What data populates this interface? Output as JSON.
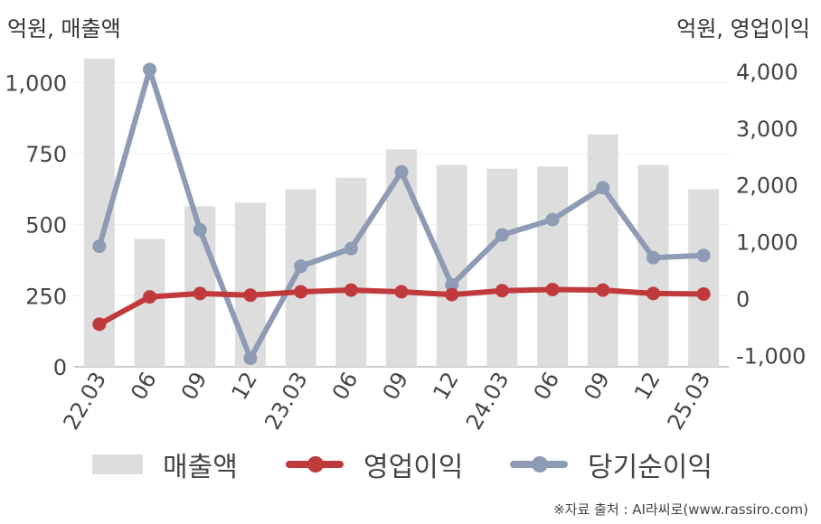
{
  "chart_data": {
    "type": "bar+line",
    "categories": [
      "22.03",
      "06",
      "09",
      "12",
      "23.03",
      "06",
      "09",
      "12",
      "24.03",
      "06",
      "09",
      "12",
      "25.03"
    ],
    "left_axis": {
      "unit_label": "억원, 매출액",
      "ylim": [
        0,
        1100
      ],
      "ticks": [
        0,
        250,
        500,
        750,
        1000
      ],
      "tick_labels": [
        "0",
        "250",
        "500",
        "750",
        "1,000"
      ]
    },
    "right_axis": {
      "unit_label": "억원, 영업이익",
      "ylim": [
        -1200,
        4300
      ],
      "ticks": [
        -1000,
        0,
        1000,
        2000,
        3000,
        4000
      ],
      "tick_labels": [
        "-1,000",
        "0",
        "1,000",
        "2,000",
        "3,000",
        "4,000"
      ]
    },
    "series": [
      {
        "name": "매출액",
        "kind": "bar",
        "axis": "left",
        "color": "#dddddd",
        "values": [
          1085,
          450,
          565,
          578,
          625,
          665,
          765,
          710,
          697,
          705,
          818,
          710,
          625
        ]
      },
      {
        "name": "영업이익",
        "kind": "line",
        "axis": "right",
        "color": "#c0393b",
        "values": [
          -450,
          30,
          90,
          60,
          120,
          150,
          120,
          70,
          140,
          160,
          150,
          90,
          80
        ]
      },
      {
        "name": "당기순이익",
        "kind": "line",
        "axis": "right",
        "color": "#8e9bb5",
        "values": [
          920,
          4030,
          1210,
          -1050,
          570,
          880,
          2230,
          240,
          1120,
          1390,
          1950,
          720,
          760
        ]
      }
    ],
    "grid": true,
    "legend_position": "bottom"
  },
  "legend": {
    "revenue": "매출액",
    "operating_profit": "영업이익",
    "net_income": "당기순이익"
  },
  "source": "※자료 출처 : AI라씨로(www.rassiro.com)"
}
